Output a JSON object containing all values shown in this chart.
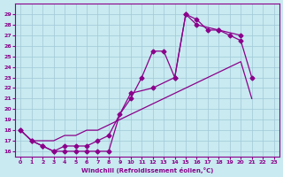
{
  "xlabel": "Windchill (Refroidissement éolien,°C)",
  "x_values": [
    0,
    1,
    2,
    3,
    4,
    5,
    6,
    7,
    8,
    9,
    10,
    11,
    12,
    13,
    14,
    15,
    16,
    17,
    18,
    19,
    20,
    21,
    22,
    23
  ],
  "line1": [
    18,
    17,
    16.5,
    16,
    16,
    16,
    16,
    16,
    16,
    19.5,
    21,
    23,
    25.5,
    25.5,
    23,
    29,
    28.5,
    27.5,
    27.5,
    27,
    26.5,
    23,
    null,
    null
  ],
  "line2": [
    18,
    17,
    16.5,
    16,
    16.5,
    16.5,
    16.5,
    17,
    17.5,
    null,
    21.5,
    null,
    22,
    null,
    23,
    29,
    28,
    null,
    27.5,
    null,
    27,
    null,
    null,
    null
  ],
  "line3": [
    18,
    17,
    17,
    17,
    17.5,
    17.5,
    18,
    18,
    18.5,
    19,
    19.5,
    20,
    20.5,
    21,
    21.5,
    22,
    22.5,
    23,
    23.5,
    24,
    24.5,
    21,
    null,
    null
  ],
  "background_color": "#c8eaf0",
  "line_color": "#8b008b",
  "grid_color": "#a0c8d8",
  "ylim": [
    15.5,
    30
  ],
  "xlim": [
    -0.5,
    23.5
  ],
  "yticks": [
    16,
    17,
    18,
    19,
    20,
    21,
    22,
    23,
    24,
    25,
    26,
    27,
    28,
    29
  ],
  "xticks": [
    0,
    1,
    2,
    3,
    4,
    5,
    6,
    7,
    8,
    9,
    10,
    11,
    12,
    13,
    14,
    15,
    16,
    17,
    18,
    19,
    20,
    21,
    22,
    23
  ]
}
